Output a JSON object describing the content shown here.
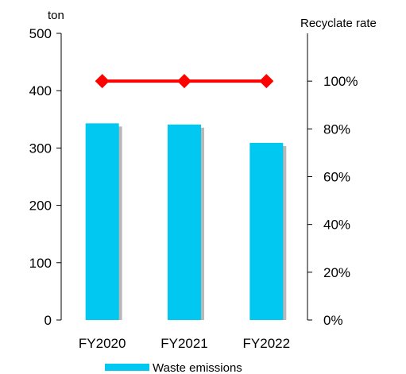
{
  "chart_data": {
    "type": "bar",
    "categories": [
      "FY2020",
      "FY2021",
      "FY2022"
    ],
    "series": [
      {
        "name": "Waste emissions",
        "type": "bar",
        "axis": "left",
        "color": "#00c8f0",
        "values": [
          343,
          341,
          309
        ]
      },
      {
        "type": "line",
        "axis": "right",
        "color": "#ff0000",
        "marker": "diamond",
        "values": [
          100,
          100,
          100
        ]
      }
    ],
    "y_left": {
      "unit": "ton",
      "ticks": [
        "0",
        "100",
        "200",
        "300",
        "400",
        "500"
      ],
      "ylim": [
        0,
        500
      ]
    },
    "y_right": {
      "unit": "Recyclate rate",
      "ticks": [
        "0%",
        "20%",
        "40%",
        "60%",
        "80%",
        "100%"
      ],
      "ylim": [
        0,
        120
      ]
    },
    "grid": false,
    "legend_position": "bottom"
  }
}
